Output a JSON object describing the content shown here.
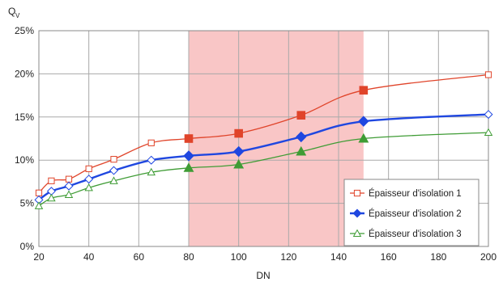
{
  "chart_data": {
    "type": "line",
    "xlabel": "DN",
    "ylabel": "Q",
    "ylabel_subscript": "V",
    "xlim": [
      20,
      200
    ],
    "ylim": [
      0,
      25
    ],
    "xticks": [
      20,
      40,
      60,
      80,
      100,
      120,
      140,
      160,
      180,
      200
    ],
    "yticks": [
      0,
      5,
      10,
      15,
      20,
      25
    ],
    "ytick_labels": [
      "0%",
      "5%",
      "10%",
      "15%",
      "20%",
      "25%"
    ],
    "grid": true,
    "highlight_band": {
      "x": [
        80,
        150
      ],
      "color": "#f9c6c6"
    },
    "legend_position": "bottom-right",
    "series": [
      {
        "name": "Épaisseur d'isolation 1",
        "color": "#e0442a",
        "marker": "square",
        "x": [
          20,
          25,
          32,
          40,
          50,
          65,
          80,
          100,
          125,
          150,
          200
        ],
        "y": [
          6.2,
          7.6,
          7.8,
          9.0,
          10.1,
          12.0,
          12.5,
          13.1,
          15.2,
          18.1,
          19.9
        ],
        "filled": [
          false,
          false,
          false,
          false,
          false,
          false,
          true,
          true,
          true,
          true,
          false
        ]
      },
      {
        "name": "Épaisseur d'isolation 2",
        "color": "#1f47e0",
        "marker": "diamond",
        "x": [
          20,
          25,
          32,
          40,
          50,
          65,
          80,
          100,
          125,
          150,
          200
        ],
        "y": [
          5.4,
          6.4,
          7.0,
          7.8,
          8.8,
          10.0,
          10.5,
          11.0,
          12.7,
          14.5,
          15.3
        ],
        "filled": [
          false,
          false,
          false,
          false,
          false,
          false,
          true,
          true,
          true,
          true,
          false
        ]
      },
      {
        "name": "Épaisseur d'isolation 3",
        "color": "#3f9c35",
        "marker": "triangle",
        "x": [
          20,
          25,
          32,
          40,
          50,
          65,
          80,
          100,
          125,
          150,
          200
        ],
        "y": [
          4.7,
          5.6,
          6.0,
          6.8,
          7.6,
          8.6,
          9.1,
          9.5,
          11.0,
          12.5,
          13.2
        ],
        "filled": [
          false,
          false,
          false,
          false,
          false,
          false,
          true,
          true,
          true,
          true,
          false
        ]
      }
    ]
  }
}
